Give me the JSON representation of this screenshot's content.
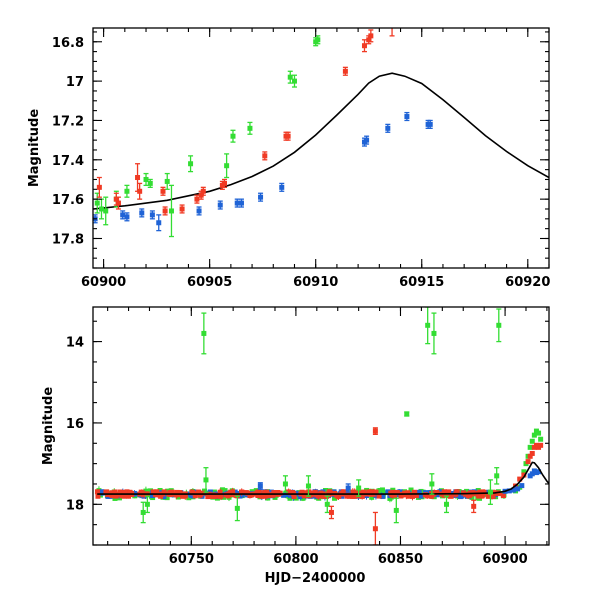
{
  "colors": {
    "green": "#33dd33",
    "blue": "#1f63d6",
    "red": "#f03a24",
    "model": "#000000"
  },
  "chart_data": [
    {
      "type": "scatter",
      "title": "",
      "xlabel": "",
      "ylabel": "Magnitude",
      "xlim": [
        60899.5,
        60921
      ],
      "ylim": [
        17.95,
        16.73
      ],
      "y_inverted": true,
      "xticks": [
        60900,
        60905,
        60910,
        60915,
        60920
      ],
      "xtick_labels": [
        "60900",
        "60905",
        "60910",
        "60915",
        "60920"
      ],
      "yticks": [
        16.8,
        17,
        17.2,
        17.4,
        17.6,
        17.8
      ],
      "ytick_labels": [
        "16.8",
        "17",
        "17.2",
        "17.4",
        "17.6",
        "17.8"
      ],
      "series": [
        {
          "color": "green",
          "points": [
            {
              "x": 60899.7,
              "y": 17.62,
              "err": 0.05
            },
            {
              "x": 60899.9,
              "y": 17.65,
              "err": 0.05
            },
            {
              "x": 60900.1,
              "y": 17.66,
              "err": 0.07
            },
            {
              "x": 60900.6,
              "y": 17.6,
              "err": 0.04
            },
            {
              "x": 60901.1,
              "y": 17.56,
              "err": 0.03
            },
            {
              "x": 60902.0,
              "y": 17.5,
              "err": 0.03
            },
            {
              "x": 60902.2,
              "y": 17.52,
              "err": 0.02
            },
            {
              "x": 60903.0,
              "y": 17.51,
              "err": 0.04
            },
            {
              "x": 60903.2,
              "y": 17.66,
              "err": 0.13
            },
            {
              "x": 60904.1,
              "y": 17.42,
              "err": 0.04
            },
            {
              "x": 60905.8,
              "y": 17.43,
              "err": 0.06
            },
            {
              "x": 60906.1,
              "y": 17.28,
              "err": 0.03
            },
            {
              "x": 60906.9,
              "y": 17.24,
              "err": 0.03
            },
            {
              "x": 60908.8,
              "y": 16.98,
              "err": 0.03
            },
            {
              "x": 60909.0,
              "y": 17.0,
              "err": 0.03
            },
            {
              "x": 60910.0,
              "y": 16.8,
              "err": 0.02
            },
            {
              "x": 60910.1,
              "y": 16.79,
              "err": 0.02
            }
          ]
        },
        {
          "color": "blue",
          "points": [
            {
              "x": 60899.6,
              "y": 17.7,
              "err": 0.02
            },
            {
              "x": 60900.9,
              "y": 17.68,
              "err": 0.02
            },
            {
              "x": 60901.1,
              "y": 17.69,
              "err": 0.02
            },
            {
              "x": 60901.8,
              "y": 17.67,
              "err": 0.02
            },
            {
              "x": 60902.3,
              "y": 17.68,
              "err": 0.02
            },
            {
              "x": 60902.6,
              "y": 17.72,
              "err": 0.04
            },
            {
              "x": 60904.5,
              "y": 17.66,
              "err": 0.02
            },
            {
              "x": 60905.5,
              "y": 17.63,
              "err": 0.02
            },
            {
              "x": 60906.3,
              "y": 17.62,
              "err": 0.02
            },
            {
              "x": 60906.5,
              "y": 17.62,
              "err": 0.02
            },
            {
              "x": 60907.4,
              "y": 17.59,
              "err": 0.02
            },
            {
              "x": 60908.4,
              "y": 17.54,
              "err": 0.02
            },
            {
              "x": 60912.3,
              "y": 17.31,
              "err": 0.02
            },
            {
              "x": 60912.4,
              "y": 17.3,
              "err": 0.02
            },
            {
              "x": 60913.4,
              "y": 17.24,
              "err": 0.02
            },
            {
              "x": 60914.3,
              "y": 17.18,
              "err": 0.02
            },
            {
              "x": 60915.3,
              "y": 17.22,
              "err": 0.02
            },
            {
              "x": 60915.4,
              "y": 17.22,
              "err": 0.02
            }
          ]
        },
        {
          "color": "red",
          "points": [
            {
              "x": 60899.8,
              "y": 17.54,
              "err": 0.05
            },
            {
              "x": 60900.6,
              "y": 17.6,
              "err": 0.03
            },
            {
              "x": 60900.7,
              "y": 17.62,
              "err": 0.03
            },
            {
              "x": 60901.6,
              "y": 17.49,
              "err": 0.07
            },
            {
              "x": 60901.7,
              "y": 17.56,
              "err": 0.04
            },
            {
              "x": 60902.8,
              "y": 17.56,
              "err": 0.02
            },
            {
              "x": 60902.9,
              "y": 17.66,
              "err": 0.02
            },
            {
              "x": 60903.7,
              "y": 17.65,
              "err": 0.02
            },
            {
              "x": 60904.4,
              "y": 17.6,
              "err": 0.02
            },
            {
              "x": 60904.6,
              "y": 17.58,
              "err": 0.02
            },
            {
              "x": 60904.7,
              "y": 17.56,
              "err": 0.02
            },
            {
              "x": 60905.6,
              "y": 17.53,
              "err": 0.02
            },
            {
              "x": 60905.7,
              "y": 17.52,
              "err": 0.02
            },
            {
              "x": 60907.6,
              "y": 17.38,
              "err": 0.02
            },
            {
              "x": 60908.6,
              "y": 17.28,
              "err": 0.02
            },
            {
              "x": 60908.7,
              "y": 17.28,
              "err": 0.02
            },
            {
              "x": 60911.4,
              "y": 16.95,
              "err": 0.02
            },
            {
              "x": 60912.3,
              "y": 16.82,
              "err": 0.03
            },
            {
              "x": 60912.5,
              "y": 16.79,
              "err": 0.02
            },
            {
              "x": 60912.6,
              "y": 16.77,
              "err": 0.03
            },
            {
              "x": 60913.6,
              "y": 16.65,
              "err": 0.12
            }
          ]
        }
      ],
      "model_curve": {
        "color": "model",
        "points": [
          [
            60899.5,
            17.65
          ],
          [
            60901,
            17.634
          ],
          [
            60903,
            17.606
          ],
          [
            60905,
            17.56
          ],
          [
            60906,
            17.526
          ],
          [
            60907,
            17.485
          ],
          [
            60908,
            17.432
          ],
          [
            60909,
            17.362
          ],
          [
            60910,
            17.274
          ],
          [
            60911,
            17.172
          ],
          [
            60912,
            17.067
          ],
          [
            60912.5,
            17.01
          ],
          [
            60913,
            16.975
          ],
          [
            60913.6,
            16.96
          ],
          [
            60914.2,
            16.975
          ],
          [
            60915,
            17.012
          ],
          [
            60916,
            17.095
          ],
          [
            60917,
            17.185
          ],
          [
            60918,
            17.277
          ],
          [
            60919,
            17.358
          ],
          [
            60920,
            17.43
          ],
          [
            60921,
            17.49
          ]
        ]
      }
    },
    {
      "type": "scatter",
      "title": "",
      "xlabel": "HJD−2400000",
      "ylabel": "Magnitude",
      "xlim": [
        60703,
        60921
      ],
      "ylim": [
        19.0,
        13.15
      ],
      "y_inverted": true,
      "xticks": [
        60750,
        60800,
        60850,
        60900
      ],
      "xtick_labels": [
        "60750",
        "60800",
        "60850",
        "60900"
      ],
      "yticks": [
        14,
        16,
        18
      ],
      "ytick_labels": [
        "14",
        "16",
        "18"
      ],
      "baseline": {
        "mean": 17.75,
        "scatter": 0.06
      },
      "series": [
        {
          "color": "green",
          "points": [
            {
              "x": 60756,
              "y": 13.8,
              "err": 0.5
            },
            {
              "x": 60863,
              "y": 13.6,
              "err": 0.45
            },
            {
              "x": 60866,
              "y": 13.8,
              "err": 0.5
            },
            {
              "x": 60897,
              "y": 13.6,
              "err": 0.4
            },
            {
              "x": 60853,
              "y": 15.78,
              "err": 0.05
            },
            {
              "x": 60727,
              "y": 18.2,
              "err": 0.25
            },
            {
              "x": 60729,
              "y": 18.0,
              "err": 0.2
            },
            {
              "x": 60757,
              "y": 17.4,
              "err": 0.3
            },
            {
              "x": 60772,
              "y": 18.1,
              "err": 0.3
            },
            {
              "x": 60795,
              "y": 17.5,
              "err": 0.2
            },
            {
              "x": 60806,
              "y": 17.55,
              "err": 0.25
            },
            {
              "x": 60815,
              "y": 18.0,
              "err": 0.2
            },
            {
              "x": 60830,
              "y": 17.6,
              "err": 0.2
            },
            {
              "x": 60848,
              "y": 18.15,
              "err": 0.3
            },
            {
              "x": 60865,
              "y": 17.5,
              "err": 0.25
            },
            {
              "x": 60872,
              "y": 18.0,
              "err": 0.2
            },
            {
              "x": 60893,
              "y": 17.7,
              "err": 0.3
            },
            {
              "x": 60896,
              "y": 17.3,
              "err": 0.2
            }
          ]
        },
        {
          "color": "red",
          "points": [
            {
              "x": 60838,
              "y": 16.2,
              "err": 0.08
            },
            {
              "x": 60838,
              "y": 18.6,
              "err": 0.4
            },
            {
              "x": 60817,
              "y": 18.2,
              "err": 0.15
            },
            {
              "x": 60885,
              "y": 18.05,
              "err": 0.15
            }
          ]
        },
        {
          "color": "blue",
          "points": [
            {
              "x": 60783,
              "y": 17.55,
              "err": 0.08
            },
            {
              "x": 60825,
              "y": 17.6,
              "err": 0.1
            }
          ]
        }
      ],
      "rise": [
        {
          "color": "green",
          "points": [
            [
              60905,
              17.67
            ],
            [
              60907,
              17.58
            ],
            [
              60909,
              17.2
            ],
            [
              60910,
              17.0
            ],
            [
              60911,
              16.82
            ],
            [
              60912,
              16.6
            ],
            [
              60913,
              16.45
            ],
            [
              60914,
              16.3
            ],
            [
              60915,
              16.2
            ],
            [
              60916,
              16.25
            ],
            [
              60917,
              16.4
            ]
          ]
        },
        {
          "color": "red",
          "points": [
            [
              60905,
              17.55
            ],
            [
              60907,
              17.38
            ],
            [
              60909,
              17.28
            ],
            [
              60911,
              16.95
            ],
            [
              60912,
              16.82
            ],
            [
              60913,
              16.75
            ],
            [
              60914,
              16.6
            ],
            [
              60915,
              16.55
            ],
            [
              60916,
              16.6
            ],
            [
              60917,
              16.55
            ]
          ]
        },
        {
          "color": "blue",
          "points": [
            [
              60900,
              17.68
            ],
            [
              60902,
              17.67
            ],
            [
              60904,
              17.65
            ],
            [
              60906,
              17.62
            ],
            [
              60908,
              17.54
            ],
            [
              60912,
              17.3
            ],
            [
              60913,
              17.25
            ],
            [
              60914,
              17.18
            ],
            [
              60915,
              17.22
            ],
            [
              60916,
              17.2
            ]
          ]
        }
      ],
      "model_curve": {
        "color": "model",
        "points": [
          [
            60705,
            17.75
          ],
          [
            60850,
            17.75
          ],
          [
            60880,
            17.74
          ],
          [
            60895,
            17.72
          ],
          [
            60900,
            17.68
          ],
          [
            60903,
            17.62
          ],
          [
            60906,
            17.5
          ],
          [
            60909,
            17.33
          ],
          [
            60911,
            17.15
          ],
          [
            60913,
            16.97
          ],
          [
            60914,
            16.98
          ],
          [
            60916,
            17.1
          ],
          [
            60918,
            17.28
          ],
          [
            60920,
            17.43
          ],
          [
            60921,
            17.49
          ]
        ]
      }
    }
  ]
}
